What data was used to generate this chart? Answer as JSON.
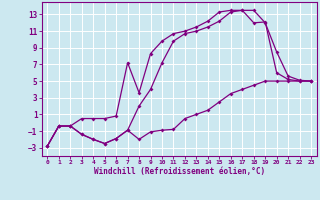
{
  "xlabel": "Windchill (Refroidissement éolien,°C)",
  "bg_color": "#cce8f0",
  "line_color": "#800080",
  "grid_color": "#ffffff",
  "xlim": [
    -0.5,
    23.5
  ],
  "ylim": [
    -4.0,
    14.5
  ],
  "xticks": [
    0,
    1,
    2,
    3,
    4,
    5,
    6,
    7,
    8,
    9,
    10,
    11,
    12,
    13,
    14,
    15,
    16,
    17,
    18,
    19,
    20,
    21,
    22,
    23
  ],
  "yticks": [
    -3,
    -1,
    1,
    3,
    5,
    7,
    9,
    11,
    13
  ],
  "line1_x": [
    0,
    1,
    2,
    3,
    4,
    5,
    6,
    7,
    8,
    9,
    10,
    11,
    12,
    13,
    14,
    15,
    16,
    17,
    18,
    19,
    20,
    21,
    22,
    23
  ],
  "line1_y": [
    -2.8,
    -0.4,
    -0.4,
    -1.4,
    -2.0,
    -2.5,
    -1.9,
    -0.9,
    2.0,
    4.0,
    7.2,
    9.8,
    10.7,
    11.0,
    11.5,
    12.2,
    13.3,
    13.5,
    13.5,
    12.0,
    8.5,
    5.6,
    5.1,
    5.0
  ],
  "line2_x": [
    0,
    1,
    2,
    3,
    4,
    5,
    6,
    7,
    8,
    9,
    10,
    11,
    12,
    13,
    14,
    15,
    16,
    17,
    18,
    19,
    20,
    21,
    22,
    23
  ],
  "line2_y": [
    -2.8,
    -0.4,
    -0.4,
    0.5,
    0.5,
    0.5,
    0.8,
    7.2,
    3.6,
    8.3,
    9.8,
    10.7,
    11.0,
    11.5,
    12.2,
    13.3,
    13.5,
    13.5,
    12.0,
    12.1,
    6.0,
    5.2,
    5.0,
    5.0
  ],
  "line3_x": [
    0,
    1,
    2,
    3,
    4,
    5,
    6,
    7,
    8,
    9,
    10,
    11,
    12,
    13,
    14,
    15,
    16,
    17,
    18,
    19,
    20,
    21,
    22,
    23
  ],
  "line3_y": [
    -2.8,
    -0.4,
    -0.4,
    -1.4,
    -2.0,
    -2.5,
    -1.9,
    -0.9,
    -2.0,
    -1.1,
    -0.9,
    -0.8,
    0.5,
    1.0,
    1.5,
    2.5,
    3.5,
    4.0,
    4.5,
    5.0,
    5.0,
    5.0,
    5.0,
    5.0
  ]
}
